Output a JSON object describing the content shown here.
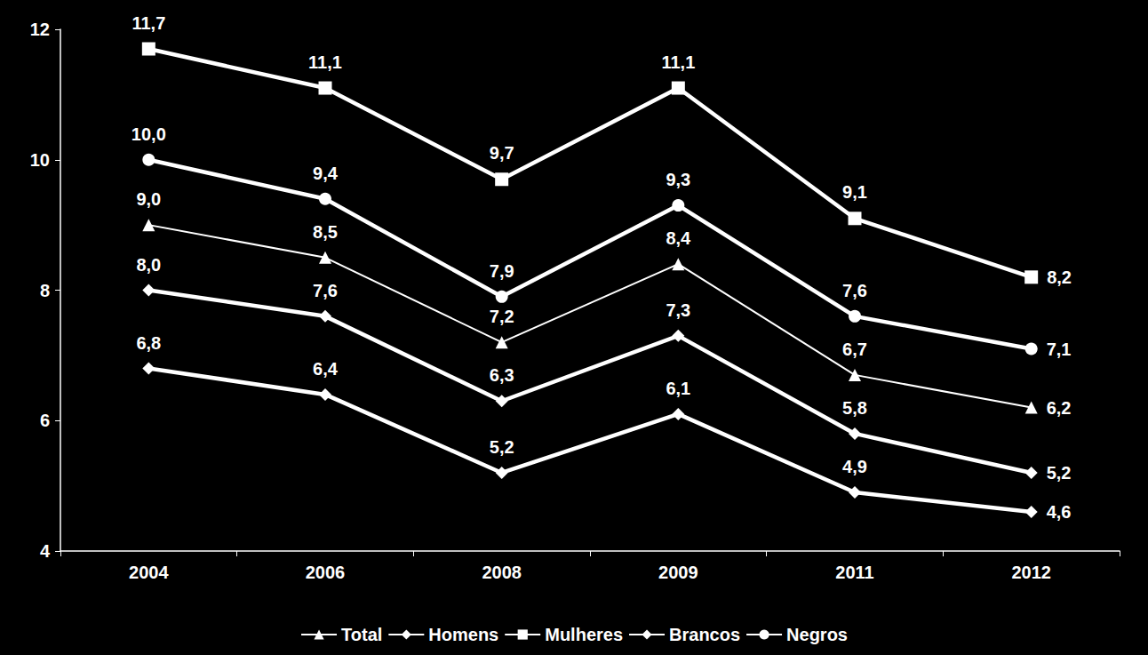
{
  "chart_data": {
    "type": "line",
    "categories": [
      "2004",
      "2006",
      "2008",
      "2009",
      "2011",
      "2012"
    ],
    "ylim": [
      4,
      12
    ],
    "yticks": [
      4,
      6,
      8,
      10,
      12
    ],
    "grid": false,
    "legend": "bottom",
    "data_labels": true,
    "series": [
      {
        "name": "Total",
        "color": "#ffffff",
        "marker": "triangle",
        "line_style": "thin",
        "values": [
          9.0,
          8.5,
          7.2,
          8.4,
          6.7,
          6.2
        ],
        "value_labels": [
          "9,0",
          "8,5",
          "7,2",
          "8,4",
          "6,7",
          "6,2"
        ]
      },
      {
        "name": "Homens",
        "color": "#ffffff",
        "marker": "diamond",
        "line_style": "thick",
        "values": [
          8.0,
          7.6,
          6.3,
          7.3,
          5.8,
          5.2
        ],
        "value_labels": [
          "8,0",
          "7,6",
          "6,3",
          "7,3",
          "5,8",
          "5,2"
        ]
      },
      {
        "name": "Mulheres",
        "color": "#ffffff",
        "marker": "square",
        "line_style": "thick",
        "values": [
          11.7,
          11.1,
          9.7,
          11.1,
          9.1,
          8.2
        ],
        "value_labels": [
          "11,7",
          "11,1",
          "9,7",
          "11,1",
          "9,1",
          "8,2"
        ]
      },
      {
        "name": "Brancos",
        "color": "#ffffff",
        "marker": "diamond",
        "line_style": "thick",
        "values": [
          6.8,
          6.4,
          5.2,
          6.1,
          4.9,
          4.6
        ],
        "value_labels": [
          "6,8",
          "6,4",
          "5,2",
          "6,1",
          "4,9",
          "4,6"
        ]
      },
      {
        "name": "Negros",
        "color": "#ffffff",
        "marker": "circle",
        "line_style": "thick",
        "values": [
          10.0,
          9.4,
          7.9,
          9.3,
          7.6,
          7.1
        ],
        "value_labels": [
          "10,0",
          "9,4",
          "7,9",
          "9,3",
          "7,6",
          "7,1"
        ]
      }
    ]
  }
}
